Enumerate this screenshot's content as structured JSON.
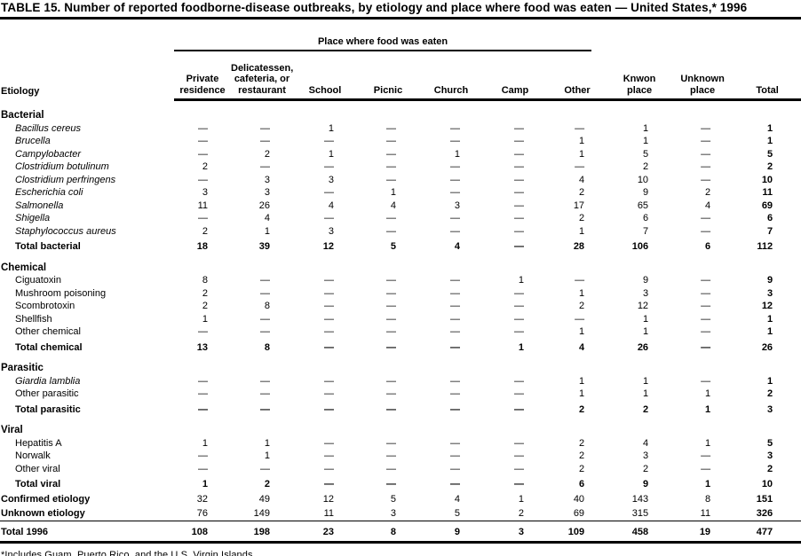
{
  "title": "TABLE 15. Number of reported foodborne-disease outbreaks, by etiology and place where food was eaten — United States,* 1996",
  "footnote": "*Includes Guam, Puerto Rico, and the U.S. Virgin Islands.",
  "table": {
    "spanner": "Place where food was eaten",
    "col_headers": [
      "Etiology",
      "Private\nresidence",
      "Delicatessen,\ncafeteria, or\nrestaurant",
      "School",
      "Picnic",
      "Church",
      "Camp",
      "Other",
      "Knwon\nplace",
      "Unknown\nplace",
      "Total"
    ],
    "rows": [
      {
        "label": "Bacterial",
        "style": "section",
        "values": []
      },
      {
        "label": "Bacillus cereus",
        "style": "italic",
        "values": [
          "—",
          "—",
          "1",
          "—",
          "—",
          "—",
          "—",
          "1",
          "—",
          "1"
        ]
      },
      {
        "label": "Brucella",
        "style": "italic",
        "values": [
          "—",
          "—",
          "—",
          "—",
          "—",
          "—",
          "1",
          "1",
          "—",
          "1"
        ]
      },
      {
        "label": "Campylobacter",
        "style": "italic",
        "values": [
          "—",
          "2",
          "1",
          "—",
          "1",
          "—",
          "1",
          "5",
          "—",
          "5"
        ]
      },
      {
        "label": "Clostridium botulinum",
        "style": "italic",
        "values": [
          "2",
          "—",
          "—",
          "—",
          "—",
          "—",
          "—",
          "2",
          "—",
          "2"
        ]
      },
      {
        "label": "Clostridium perfringens",
        "style": "italic",
        "values": [
          "—",
          "3",
          "3",
          "—",
          "—",
          "—",
          "4",
          "10",
          "—",
          "10"
        ]
      },
      {
        "label": "Escherichia coli",
        "style": "italic",
        "values": [
          "3",
          "3",
          "—",
          "1",
          "—",
          "—",
          "2",
          "9",
          "2",
          "11"
        ]
      },
      {
        "label": "Salmonella",
        "style": "italic",
        "values": [
          "11",
          "26",
          "4",
          "4",
          "3",
          "—",
          "17",
          "65",
          "4",
          "69"
        ]
      },
      {
        "label": "Shigella",
        "style": "italic",
        "values": [
          "—",
          "4",
          "—",
          "—",
          "—",
          "—",
          "2",
          "6",
          "—",
          "6"
        ]
      },
      {
        "label": "Staphylococcus aureus",
        "style": "italic",
        "values": [
          "2",
          "1",
          "3",
          "—",
          "—",
          "—",
          "1",
          "7",
          "—",
          "7"
        ]
      },
      {
        "label": "Total bacterial",
        "style": "total",
        "values": [
          "18",
          "39",
          "12",
          "5",
          "4",
          "—",
          "28",
          "106",
          "6",
          "112"
        ]
      },
      {
        "label": "Chemical",
        "style": "section",
        "values": []
      },
      {
        "label": "Ciguatoxin",
        "style": "plain",
        "values": [
          "8",
          "—",
          "—",
          "—",
          "—",
          "1",
          "—",
          "9",
          "—",
          "9"
        ]
      },
      {
        "label": "Mushroom poisoning",
        "style": "plain",
        "values": [
          "2",
          "—",
          "—",
          "—",
          "—",
          "—",
          "1",
          "3",
          "—",
          "3"
        ]
      },
      {
        "label": "Scombrotoxin",
        "style": "plain",
        "values": [
          "2",
          "8",
          "—",
          "—",
          "—",
          "—",
          "2",
          "12",
          "—",
          "12"
        ]
      },
      {
        "label": "Shellfish",
        "style": "plain",
        "values": [
          "1",
          "—",
          "—",
          "—",
          "—",
          "—",
          "—",
          "1",
          "—",
          "1"
        ]
      },
      {
        "label": "Other chemical",
        "style": "plain",
        "values": [
          "—",
          "—",
          "—",
          "—",
          "—",
          "—",
          "1",
          "1",
          "—",
          "1"
        ]
      },
      {
        "label": "Total chemical",
        "style": "total",
        "values": [
          "13",
          "8",
          "—",
          "—",
          "—",
          "1",
          "4",
          "26",
          "—",
          "26"
        ]
      },
      {
        "label": "Parasitic",
        "style": "section",
        "values": []
      },
      {
        "label": "Giardia lamblia",
        "style": "italic",
        "values": [
          "—",
          "—",
          "—",
          "—",
          "—",
          "—",
          "1",
          "1",
          "—",
          "1"
        ]
      },
      {
        "label": "Other parasitic",
        "style": "plain",
        "values": [
          "—",
          "—",
          "—",
          "—",
          "—",
          "—",
          "1",
          "1",
          "1",
          "2"
        ]
      },
      {
        "label": "Total parasitic",
        "style": "total",
        "values": [
          "—",
          "—",
          "—",
          "—",
          "—",
          "—",
          "2",
          "2",
          "1",
          "3"
        ]
      },
      {
        "label": "Viral",
        "style": "section",
        "values": []
      },
      {
        "label": "Hepatitis A",
        "style": "plain",
        "values": [
          "1",
          "1",
          "—",
          "—",
          "—",
          "—",
          "2",
          "4",
          "1",
          "5"
        ]
      },
      {
        "label": "Norwalk",
        "style": "plain",
        "values": [
          "—",
          "1",
          "—",
          "—",
          "—",
          "—",
          "2",
          "3",
          "—",
          "3"
        ]
      },
      {
        "label": "Other viral",
        "style": "plain",
        "values": [
          "—",
          "—",
          "—",
          "—",
          "—",
          "—",
          "2",
          "2",
          "—",
          "2"
        ]
      },
      {
        "label": "Total viral",
        "style": "total",
        "values": [
          "1",
          "2",
          "—",
          "—",
          "—",
          "—",
          "6",
          "9",
          "1",
          "10"
        ]
      },
      {
        "label": "Confirmed etiology",
        "style": "flushbold",
        "values": [
          "32",
          "49",
          "12",
          "5",
          "4",
          "1",
          "40",
          "143",
          "8",
          "151"
        ]
      },
      {
        "label": "Unknown etiology",
        "style": "flushbold",
        "values": [
          "76",
          "149",
          "11",
          "3",
          "5",
          "2",
          "69",
          "315",
          "11",
          "326"
        ]
      },
      {
        "label": "Total 1996",
        "style": "grand",
        "values": [
          "108",
          "198",
          "23",
          "8",
          "9",
          "3",
          "109",
          "458",
          "19",
          "477"
        ]
      }
    ]
  }
}
